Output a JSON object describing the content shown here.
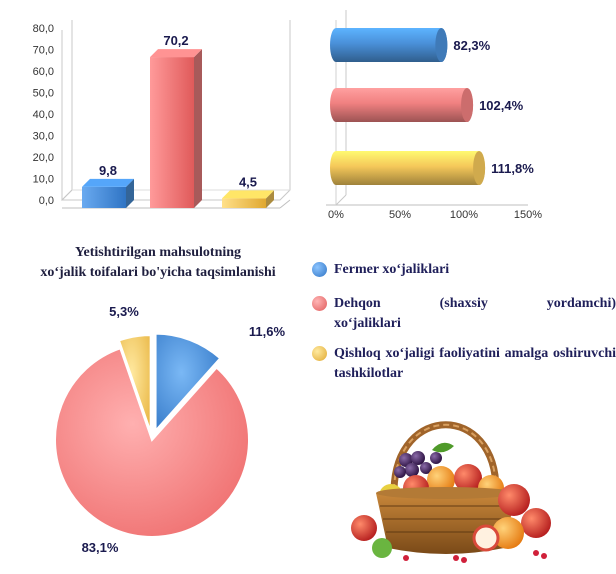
{
  "bar3d_chart": {
    "yticks": [
      "0,0",
      "10,0",
      "20,0",
      "30,0",
      "40,0",
      "50,0",
      "60,0",
      "70,0",
      "80,0"
    ],
    "labels": [
      "9,8",
      "70,2",
      "4,5"
    ],
    "colors": [
      "#4a90d9",
      "#f08080",
      "#f5c85a"
    ]
  },
  "hbar_chart": {
    "xticks": [
      "0%",
      "50%",
      "100%",
      "150%"
    ],
    "labels": [
      "82,3%",
      "102,4%",
      "111,8%"
    ],
    "colors": [
      "#4a90d9",
      "#f08080",
      "#f5c85a"
    ]
  },
  "pie_chart": {
    "title_line1": "Yetishtirilgan mahsulotning",
    "title_line2": "xo‘jalik toifalari bo'yicha taqsimlanishi",
    "labels": [
      "11,6%",
      "83,1%",
      "5,3%"
    ],
    "colors": [
      "#4a90d9",
      "#f08080",
      "#f5c85a"
    ]
  },
  "legend": {
    "item1": "Fermer xo‘jaliklari",
    "item2_line1": "Dehqon (shaxsiy yordamchi)",
    "item2_line2": "xo‘jaliklari",
    "item3": "Qishloq xo‘jaligi faoliyatini amalga oshiruvchi tashkilotlar"
  },
  "chart_data": [
    {
      "type": "bar",
      "categories": [
        "",
        "",
        ""
      ],
      "values": [
        9.8,
        70.2,
        4.5
      ],
      "ylim": [
        0,
        80
      ],
      "data_labels": [
        "9,8",
        "70,2",
        "4,5"
      ],
      "grid": false
    },
    {
      "type": "bar",
      "orientation": "horizontal",
      "categories": [
        "",
        "",
        ""
      ],
      "values": [
        82.3,
        102.4,
        111.8
      ],
      "xlim": [
        0,
        150
      ],
      "data_labels": [
        "82,3%",
        "102,4%",
        "111,8%"
      ],
      "grid": false
    },
    {
      "type": "pie",
      "title": "Yetishtirilgan mahsulotning xo‘jalik toifalari bo'yicha taqsimlanishi",
      "categories": [
        "Fermer xo‘jaliklari",
        "Dehqon (shaxsiy yordamchi) xo‘jaliklari",
        "Qishloq xo‘jaligi faoliyatini amalga oshiruvchi tashkilotlar"
      ],
      "values": [
        11.6,
        83.1,
        5.3
      ],
      "data_labels": [
        "11,6%",
        "83,1%",
        "5,3%"
      ],
      "legend": "right"
    }
  ]
}
